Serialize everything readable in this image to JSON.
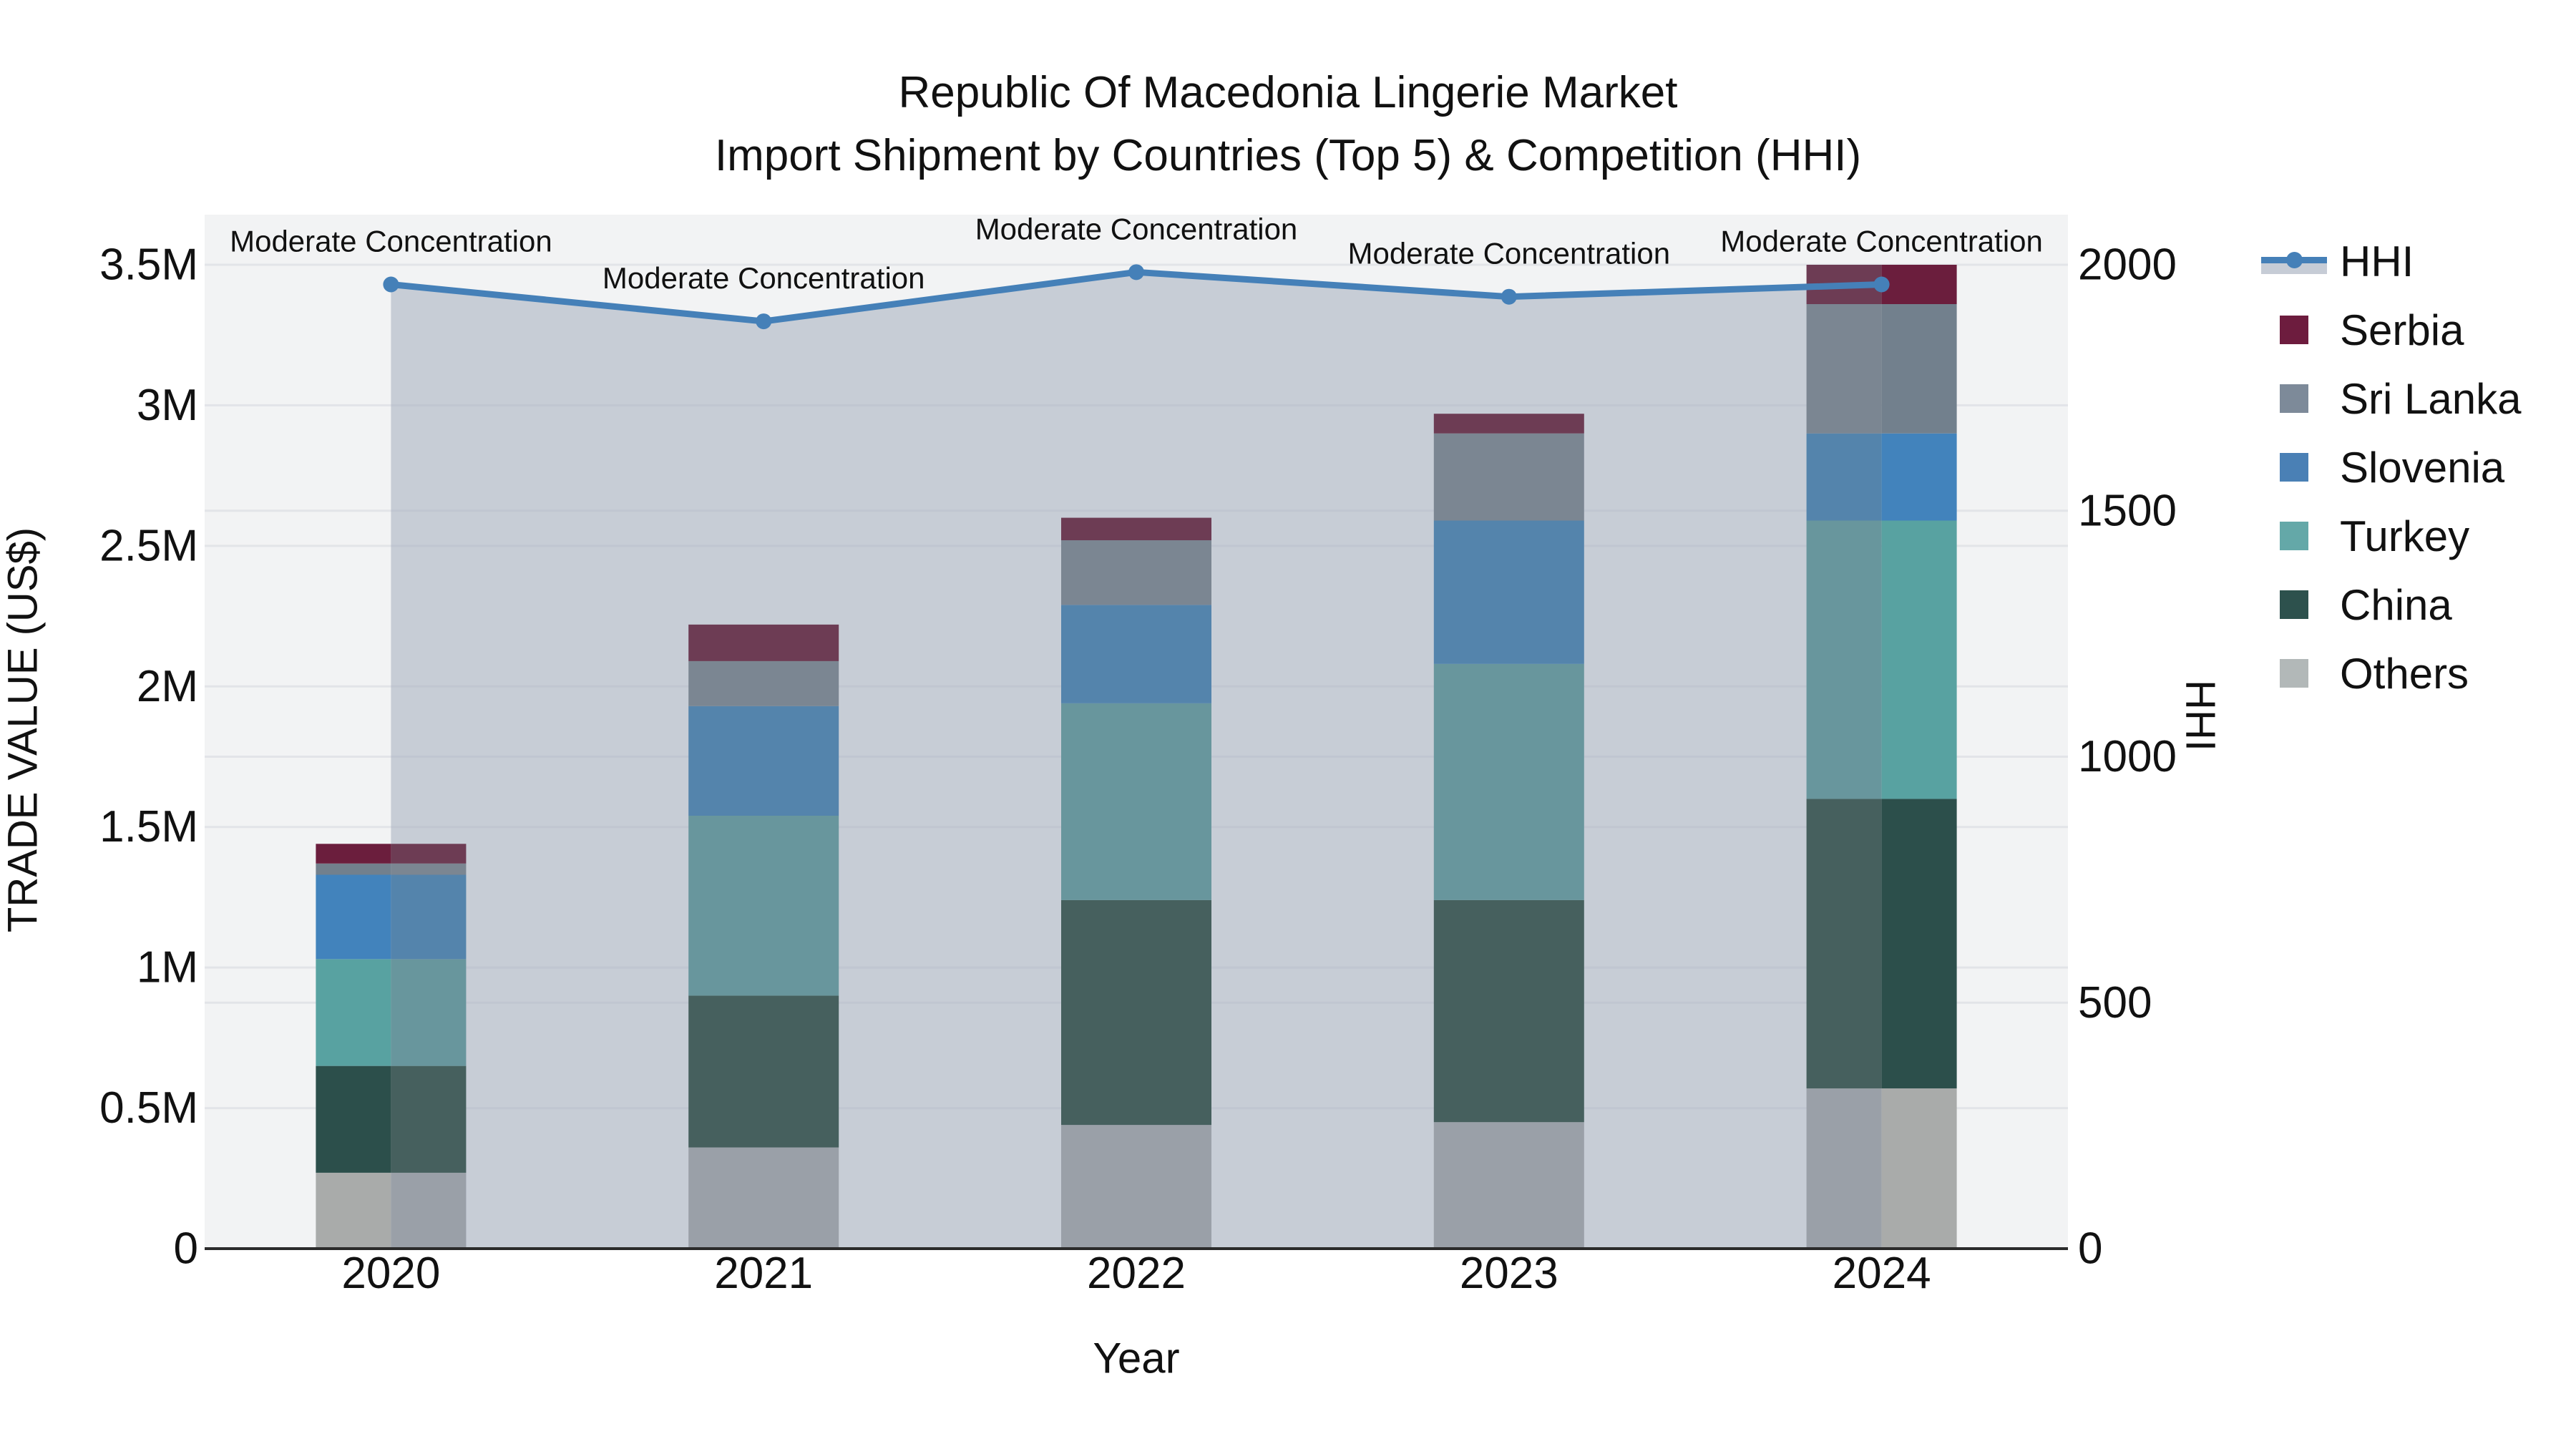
{
  "title": {
    "line1": "Republic Of Macedonia Lingerie Market",
    "line2": "Import Shipment by Countries (Top 5) & Competition (HHI)"
  },
  "axes": {
    "y_left": {
      "title": "TRADE VALUE (US$)",
      "ticks": [
        {
          "label": "0",
          "value": 0
        },
        {
          "label": "0.5M",
          "value": 500000
        },
        {
          "label": "1M",
          "value": 1000000
        },
        {
          "label": "1.5M",
          "value": 1500000
        },
        {
          "label": "2M",
          "value": 2000000
        },
        {
          "label": "2.5M",
          "value": 2500000
        },
        {
          "label": "3M",
          "value": 3000000
        },
        {
          "label": "3.5M",
          "value": 3500000
        }
      ]
    },
    "y_right": {
      "title": "HHI",
      "ticks": [
        {
          "label": "0",
          "value": 0
        },
        {
          "label": "500",
          "value": 500
        },
        {
          "label": "1000",
          "value": 1000
        },
        {
          "label": "1500",
          "value": 1500
        },
        {
          "label": "2000",
          "value": 2000
        }
      ]
    },
    "x": {
      "title": "Year",
      "categories": [
        "2020",
        "2021",
        "2022",
        "2023",
        "2024"
      ]
    }
  },
  "legend": {
    "items": [
      {
        "label": "HHI",
        "type": "line",
        "series": "HHI"
      },
      {
        "label": "Serbia",
        "type": "swatch",
        "series": "Serbia"
      },
      {
        "label": "Sri Lanka",
        "type": "swatch",
        "series": "Sri Lanka"
      },
      {
        "label": "Slovenia",
        "type": "swatch",
        "series": "Slovenia"
      },
      {
        "label": "Turkey",
        "type": "swatch",
        "series": "Turkey"
      },
      {
        "label": "China",
        "type": "swatch",
        "series": "China"
      },
      {
        "label": "Others",
        "type": "swatch",
        "series": "Others"
      }
    ]
  },
  "colors": {
    "background": "#ffffff",
    "plot_bg": "#f2f3f4",
    "grid": "#e2e4e8",
    "axis_line": "#2b2b2b",
    "text": "#111111",
    "hhi_line": "#4580b8",
    "hhi_fill_rgba": "rgba(164,173,189,0.55)",
    "hhi_fill_solid": "#c6ccd6",
    "series": {
      "Serbia": {
        "legend": "#6d1c3e",
        "bright": "#6b1e3d",
        "muted": "#6d3c54"
      },
      "Sri Lanka": {
        "legend": "#7d8a99",
        "bright": "#72808d",
        "muted": "#7b8692"
      },
      "Slovenia": {
        "legend": "#4a80b5",
        "bright": "#4283bc",
        "muted": "#5484ac"
      },
      "Turkey": {
        "legend": "#64a8a8",
        "bright": "#58a2a1",
        "muted": "#68969d"
      },
      "China": {
        "legend": "#2d514d",
        "bright": "#2c4f4b",
        "muted": "#46605e"
      },
      "Others": {
        "legend": "#b2b8b8",
        "bright": "#a9abaa",
        "muted": "#9aa0a8"
      }
    }
  },
  "chart_data": {
    "type": "bar",
    "stacked": true,
    "title": "Republic Of Macedonia Lingerie Market — Import Shipment by Countries (Top 5) & Competition (HHI)",
    "categories": [
      "2020",
      "2021",
      "2022",
      "2023",
      "2024"
    ],
    "stack_order_bottom_to_top": [
      "Others",
      "China",
      "Turkey",
      "Slovenia",
      "Sri Lanka",
      "Serbia"
    ],
    "series": [
      {
        "name": "Others",
        "values": [
          270000,
          360000,
          440000,
          450000,
          570000
        ]
      },
      {
        "name": "China",
        "values": [
          380000,
          540000,
          800000,
          790000,
          1030000
        ]
      },
      {
        "name": "Turkey",
        "values": [
          380000,
          640000,
          700000,
          840000,
          990000
        ]
      },
      {
        "name": "Slovenia",
        "values": [
          300000,
          390000,
          350000,
          510000,
          310000
        ]
      },
      {
        "name": "Sri Lanka",
        "values": [
          40000,
          160000,
          230000,
          310000,
          460000
        ]
      },
      {
        "name": "Serbia",
        "values": [
          70000,
          130000,
          80000,
          70000,
          140000
        ]
      }
    ],
    "bar_totals": [
      1440000,
      2220000,
      2600000,
      2970000,
      3500000
    ],
    "line_series": {
      "name": "HHI",
      "axis": "right",
      "values": [
        1960,
        1885,
        1985,
        1935,
        1960
      ]
    },
    "annotations": [
      "Moderate Concentration",
      "Moderate Concentration",
      "Moderate Concentration",
      "Moderate Concentration",
      "Moderate Concentration"
    ],
    "xlabel": "Year",
    "ylabel": "TRADE VALUE (US$)",
    "ylabel_right": "HHI",
    "ylim": [
      0,
      3500000
    ],
    "ylim_right": [
      0,
      2000
    ],
    "grid": true,
    "legend_position": "right"
  }
}
